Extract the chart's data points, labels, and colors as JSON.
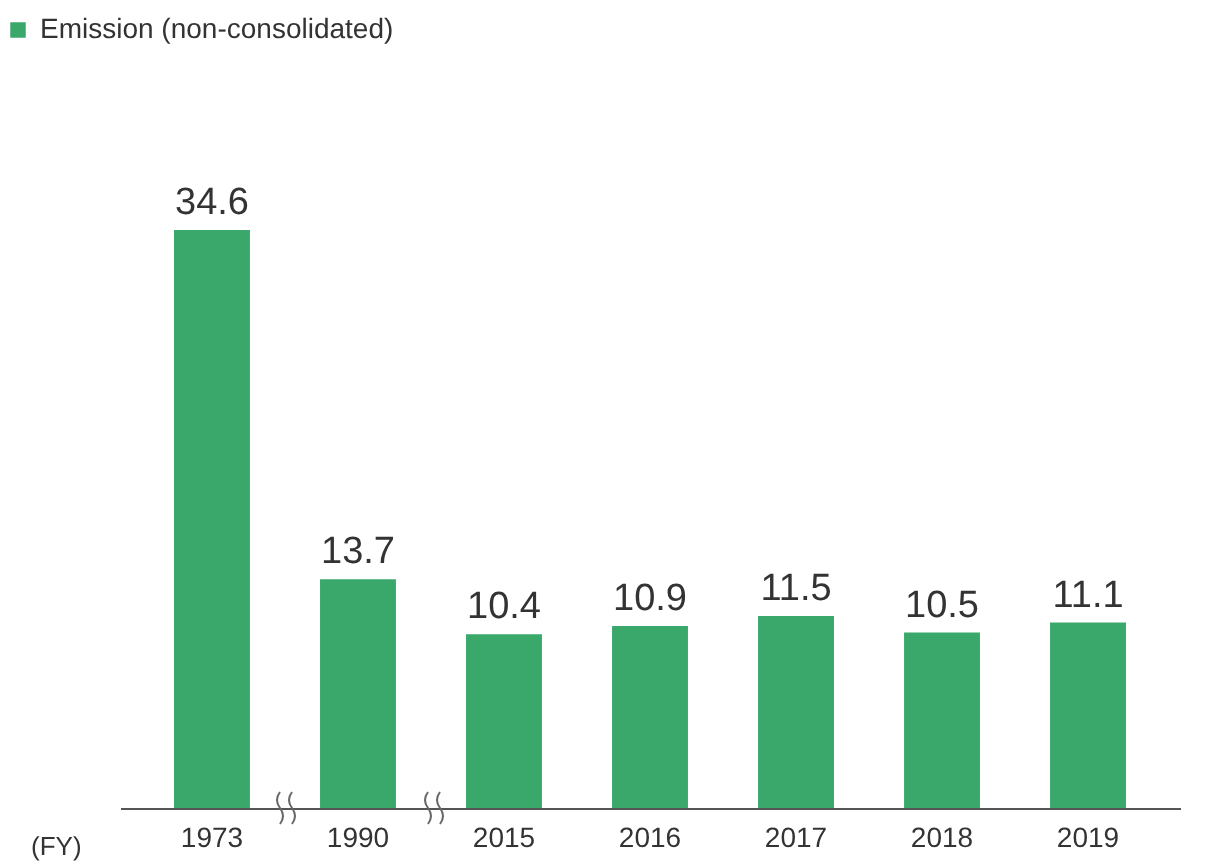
{
  "chart_data": {
    "type": "bar",
    "xlabel": "(FY)",
    "categories": [
      "1973",
      "1990",
      "2015",
      "2016",
      "2017",
      "2018",
      "2019"
    ],
    "series": [
      {
        "name": "Emission (non-consolidated)",
        "color": "#3aa86b",
        "values": [
          34.6,
          13.7,
          10.4,
          10.9,
          11.5,
          10.5,
          11.1
        ]
      }
    ],
    "data_labels": true,
    "legend": "top left",
    "grid": false
  }
}
